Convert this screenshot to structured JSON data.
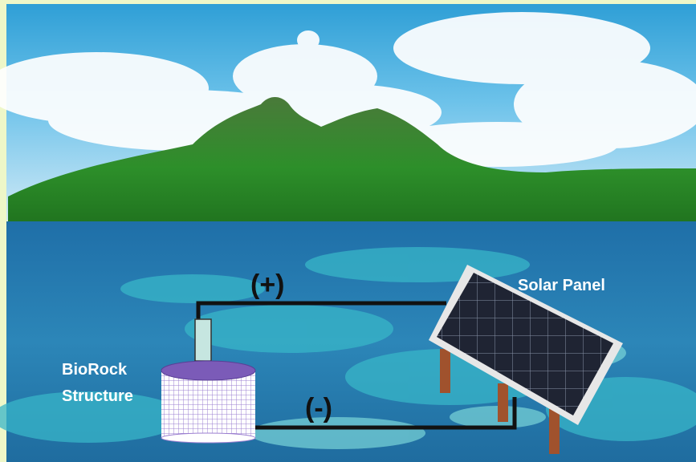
{
  "diagram": {
    "labels": {
      "positive": "(+)",
      "negative": "(-)",
      "solar_panel": "Solar Panel",
      "biorock_line1": "BioRock",
      "biorock_line2": "Structure"
    }
  }
}
